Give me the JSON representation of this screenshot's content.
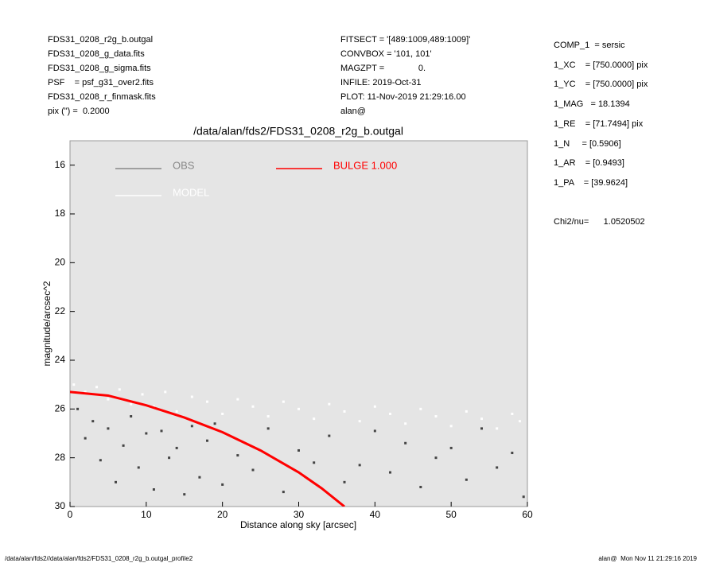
{
  "header": {
    "left": [
      "FDS31_0208_r2g_b.outgal",
      "FDS31_0208_g_data.fits",
      "FDS31_0208_g_sigma.fits",
      "PSF    = psf_g31_over2.fits",
      "FDS31_0208_r_finmask.fits",
      "pix (\") =  0.2000"
    ],
    "middle": [
      "FITSECT = '[489:1009,489:1009]'",
      "CONVBOX = '101, 101'",
      "MAGZPT =              0.",
      "INFILE: 2019-Oct-31",
      "PLOT: 11-Nov-2019 21:29:16.00",
      "alan@"
    ],
    "right": [
      "COMP_1  = sersic",
      "1_XC    = [750.0000] pix",
      "1_YC    = [750.0000] pix",
      "1_MAG   = 18.1394",
      "1_RE    = [71.7494] pix",
      "1_N     = [0.5906]",
      "1_AR    = [0.9493]",
      "1_PA    = [39.9624]",
      "",
      "Chi2/nu=      1.0520502"
    ]
  },
  "footer": {
    "left": "/data/alan/fds2//data/alan/fds2/FDS31_0208_r2g_b.outgal_profile2",
    "right": "alan@  Mon Nov 11 21:29:16 2019"
  },
  "chart_data": {
    "type": "scatter",
    "title": "/data/alan/fds2/FDS31_0208_r2g_b.outgal",
    "x_label": "Distance along sky [arcsec]",
    "y_label": "magnitude/arcsec^2",
    "xlim": [
      0,
      60
    ],
    "xticks": [
      0,
      10,
      20,
      30,
      40,
      50,
      60
    ],
    "ylim": [
      15,
      30
    ],
    "yticks": [
      16,
      18,
      20,
      22,
      24,
      26,
      28,
      30
    ],
    "y_reversed": true,
    "series": [
      {
        "name": "OBS",
        "color": "#444444",
        "legend_color": "#888888",
        "mode": "markers",
        "x": [
          1,
          2,
          3,
          4,
          5,
          6,
          7,
          8,
          9,
          10,
          11,
          12,
          13,
          14,
          15,
          16,
          17,
          18,
          19,
          20,
          22,
          24,
          26,
          28,
          30,
          32,
          34,
          36,
          38,
          40,
          42,
          44,
          46,
          48,
          50,
          52,
          54,
          56,
          58,
          59.5
        ],
        "values": [
          26.0,
          27.2,
          26.5,
          28.1,
          26.8,
          29.0,
          27.5,
          26.3,
          28.4,
          27.0,
          29.3,
          26.9,
          28.0,
          27.6,
          29.5,
          26.7,
          28.8,
          27.3,
          26.6,
          29.1,
          27.9,
          28.5,
          26.8,
          29.4,
          27.7,
          28.2,
          27.1,
          29.0,
          28.3,
          26.9,
          28.6,
          27.4,
          29.2,
          28.0,
          27.6,
          28.9,
          26.8,
          28.4,
          27.8,
          29.6
        ]
      },
      {
        "name": "MODEL",
        "color": "#ffffff",
        "legend_color": "#ffffff",
        "mode": "markers",
        "x": [
          0.5,
          2,
          3.5,
          5,
          6.5,
          8,
          9.5,
          11,
          12.5,
          14,
          16,
          18,
          20,
          22,
          24,
          26,
          28,
          30,
          32,
          34,
          36,
          38,
          40,
          42,
          44,
          46,
          48,
          50,
          52,
          54,
          56,
          58,
          59
        ],
        "values": [
          25.0,
          25.3,
          25.1,
          25.6,
          25.2,
          25.8,
          25.4,
          25.9,
          25.3,
          26.1,
          25.5,
          25.7,
          26.2,
          25.6,
          25.9,
          26.3,
          25.7,
          26.0,
          26.4,
          25.8,
          26.1,
          26.5,
          25.9,
          26.2,
          26.6,
          26.0,
          26.3,
          26.7,
          26.1,
          26.4,
          26.8,
          26.2,
          26.5
        ]
      },
      {
        "name": "BULGE  1.000",
        "color": "#ff0000",
        "legend_color": "#ff0000",
        "mode": "line",
        "x": [
          0,
          5,
          10,
          15,
          20,
          25,
          30,
          33,
          36
        ],
        "values": [
          25.3,
          25.45,
          25.85,
          26.35,
          26.95,
          27.7,
          28.6,
          29.25,
          30.0
        ]
      }
    ]
  }
}
